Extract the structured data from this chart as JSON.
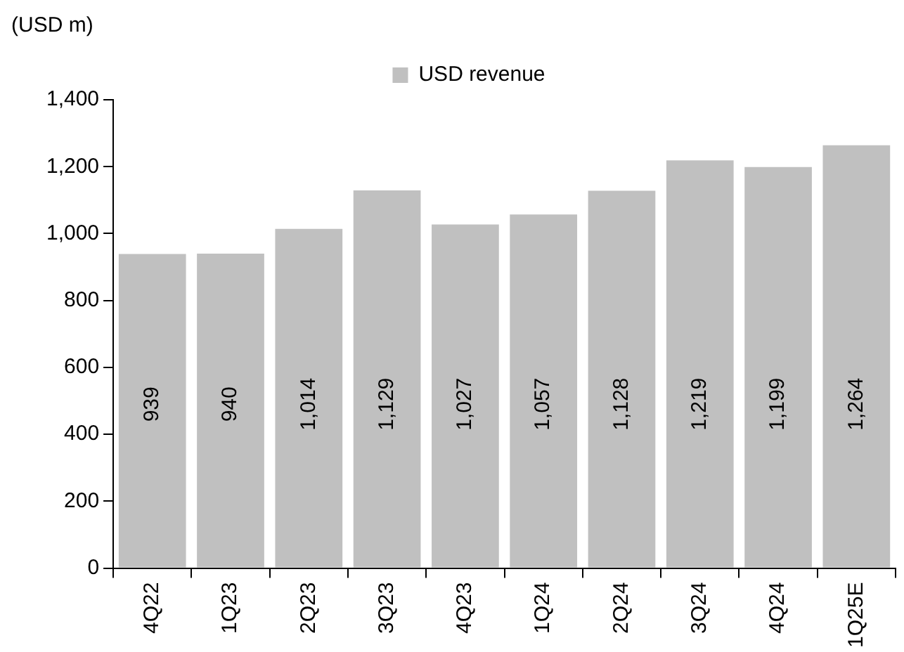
{
  "chart_data": {
    "type": "bar",
    "ylabel": "(USD m)",
    "categories": [
      "4Q22",
      "1Q23",
      "2Q23",
      "3Q23",
      "4Q23",
      "1Q24",
      "2Q24",
      "3Q24",
      "4Q24",
      "1Q25E"
    ],
    "series": [
      {
        "name": "USD revenue",
        "color": "#c0c0c0",
        "values": [
          939,
          940,
          1014,
          1129,
          1027,
          1057,
          1128,
          1219,
          1199,
          1264
        ]
      }
    ],
    "ylim": [
      0,
      1400
    ],
    "yticks": [
      {
        "value": 0,
        "label": "0"
      },
      {
        "value": 200,
        "label": "200"
      },
      {
        "value": 400,
        "label": "400"
      },
      {
        "value": 600,
        "label": "600"
      },
      {
        "value": 800,
        "label": "800"
      },
      {
        "value": 1000,
        "label": "1,000"
      },
      {
        "value": 1200,
        "label": "1,200"
      },
      {
        "value": 1400,
        "label": "1,400"
      }
    ],
    "value_labels": [
      [
        "939",
        "940",
        "1,014",
        "1,129",
        "1,027",
        "1,057",
        "1,128",
        "1,219",
        "1,199",
        "1,264"
      ]
    ],
    "legend": "top",
    "grid": false
  }
}
